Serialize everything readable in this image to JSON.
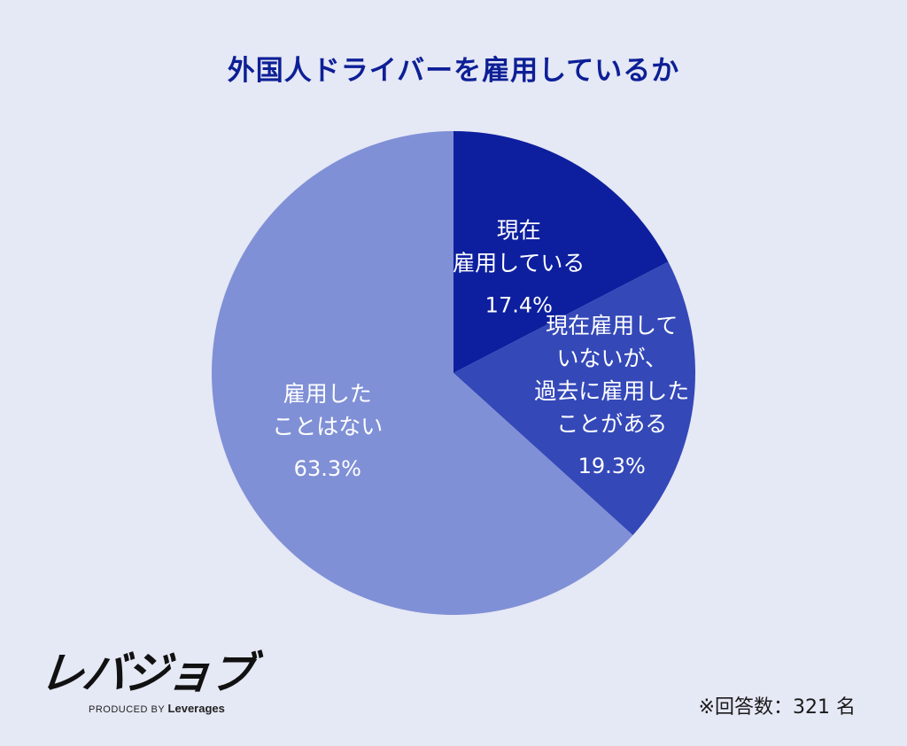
{
  "chart_data": {
    "type": "pie",
    "title": "外国人ドライバーを雇用しているか",
    "slices": [
      {
        "label_lines": [
          "現在",
          "雇用している"
        ],
        "value": 17.4,
        "value_text": "17.4%",
        "color": "#0d1f9e"
      },
      {
        "label_lines": [
          "現在雇用して",
          "いないが、",
          "過去に雇用した",
          "ことがある"
        ],
        "value": 19.3,
        "value_text": "19.3%",
        "color": "#3448b8"
      },
      {
        "label_lines": [
          "雇用した",
          "ことはない"
        ],
        "value": 63.3,
        "value_text": "63.3%",
        "color": "#8090d6"
      }
    ],
    "legend": "none"
  },
  "logo": {
    "mark": "レバジョブ",
    "sub_prefix": "PRODUCED BY",
    "sub_brand": "Leverages"
  },
  "note": "※回答数：321 名",
  "background": "#e5e8f5"
}
